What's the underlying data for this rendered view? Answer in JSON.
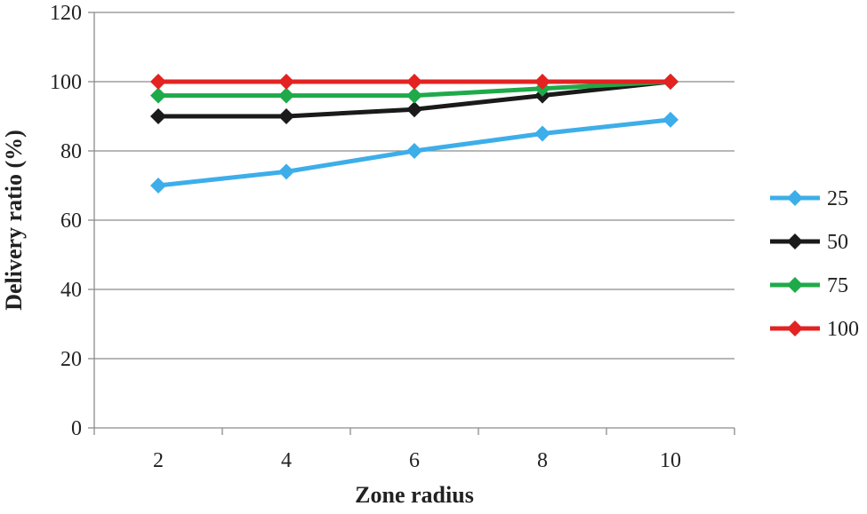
{
  "chart_data": {
    "type": "line",
    "xlabel": "Zone radius",
    "ylabel": "Delivery ratio (%)",
    "x": [
      2,
      4,
      6,
      8,
      10
    ],
    "ylim": [
      0,
      120
    ],
    "yticks": [
      0,
      20,
      40,
      60,
      80,
      100,
      120
    ],
    "grid": "horizontal",
    "legend_position": "right",
    "series": [
      {
        "name": "25",
        "color": "#3daee9",
        "values": [
          70,
          74,
          80,
          85,
          89
        ]
      },
      {
        "name": "50",
        "color": "#1a1a1a",
        "values": [
          90,
          90,
          92,
          96,
          100
        ]
      },
      {
        "name": "75",
        "color": "#1faa4a",
        "values": [
          96,
          96,
          96,
          98,
          100
        ]
      },
      {
        "name": "100",
        "color": "#e32222",
        "values": [
          100,
          100,
          100,
          100,
          100
        ]
      }
    ]
  }
}
